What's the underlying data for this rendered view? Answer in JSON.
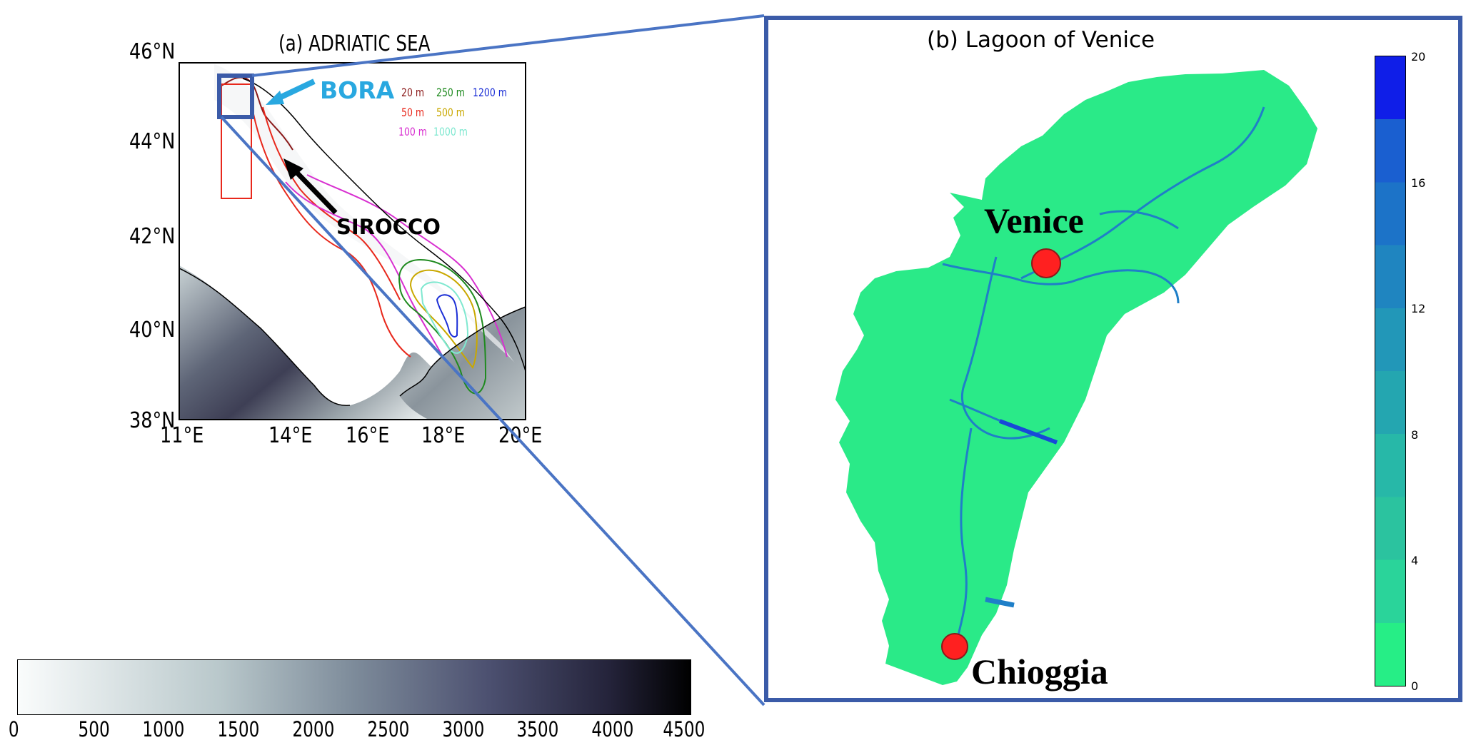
{
  "panel_a": {
    "title": "(a) ADRIATIC SEA",
    "lat_ticks": [
      "46°N",
      "44°N",
      "42°N",
      "40°N",
      "38°N"
    ],
    "lon_ticks": [
      "11°E",
      "14°E",
      "16°E",
      "18°E",
      "20°E"
    ],
    "wind_labels": {
      "bora": "BORA",
      "sirocco": "SIROCCO"
    },
    "wind_colors": {
      "bora": "#29a8e0",
      "sirocco": "#000000"
    },
    "isobath_legend": [
      {
        "label": "20 m",
        "color": "#8b1a1a"
      },
      {
        "label": "250 m",
        "color": "#1f8a1f"
      },
      {
        "label": "1200 m",
        "color": "#1c2fd6"
      },
      {
        "label": "50 m",
        "color": "#e8281c"
      },
      {
        "label": "500 m",
        "color": "#c9a800"
      },
      {
        "label": "100 m",
        "color": "#d82fd0"
      },
      {
        "label": "1000 m",
        "color": "#7fe8d0"
      }
    ]
  },
  "elevation_colorbar": {
    "ticks": [
      "0",
      "500",
      "1000",
      "1500",
      "2000",
      "2500",
      "3000",
      "3500",
      "4000",
      "4500"
    ],
    "colors": [
      "#fafcfc",
      "#9fb3b8",
      "#5e6a82",
      "#000000"
    ]
  },
  "panel_b": {
    "title": "(b) Lagoon of Venice",
    "cities": [
      "Venice",
      "Chioggia"
    ],
    "city_marker_color": "#ff2020",
    "depth_colorbar": {
      "ticks": [
        "20",
        "16",
        "12",
        "8",
        "4",
        "0"
      ],
      "colors": [
        "#26ee86",
        "#2ad49a",
        "#27b8a8",
        "#2297b8",
        "#1c73c8",
        "#1848d8",
        "#0f1ee8"
      ]
    },
    "lagoon_color": "#2aea88",
    "channel_color": "#1f7fc8"
  },
  "frame_color": "#3b5ba8",
  "zoom_line_color": "#4a74c4"
}
